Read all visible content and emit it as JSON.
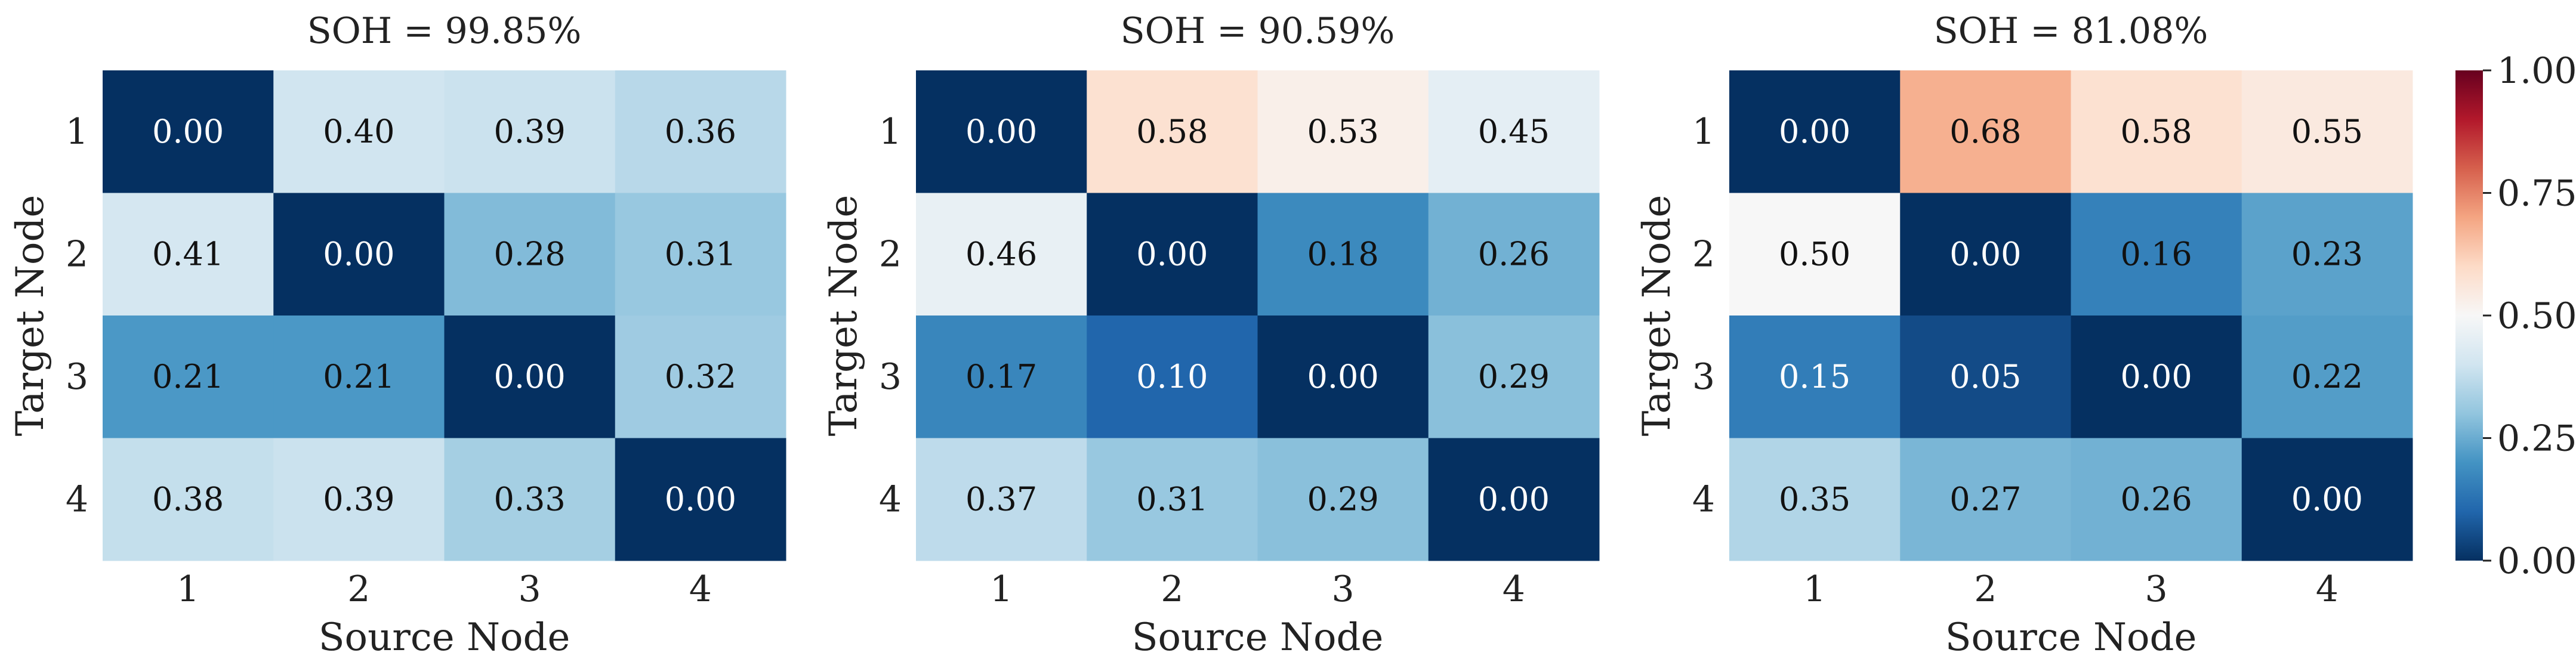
{
  "chart_data": [
    {
      "type": "heatmap",
      "title": "SOH = 99.85%",
      "xlabel": "Source Node",
      "ylabel": "Target Node",
      "x_ticks": [
        "1",
        "2",
        "3",
        "4"
      ],
      "y_ticks": [
        "1",
        "2",
        "3",
        "4"
      ],
      "values": [
        [
          0.0,
          0.4,
          0.39,
          0.36
        ],
        [
          0.41,
          0.0,
          0.28,
          0.31
        ],
        [
          0.21,
          0.21,
          0.0,
          0.32
        ],
        [
          0.38,
          0.39,
          0.33,
          0.0
        ]
      ]
    },
    {
      "type": "heatmap",
      "title": "SOH = 90.59%",
      "xlabel": "Source Node",
      "ylabel": "Target Node",
      "x_ticks": [
        "1",
        "2",
        "3",
        "4"
      ],
      "y_ticks": [
        "1",
        "2",
        "3",
        "4"
      ],
      "values": [
        [
          0.0,
          0.58,
          0.53,
          0.45
        ],
        [
          0.46,
          0.0,
          0.18,
          0.26
        ],
        [
          0.17,
          0.1,
          0.0,
          0.29
        ],
        [
          0.37,
          0.31,
          0.29,
          0.0
        ]
      ]
    },
    {
      "type": "heatmap",
      "title": "SOH = 81.08%",
      "xlabel": "Source Node",
      "ylabel": "Target Node",
      "x_ticks": [
        "1",
        "2",
        "3",
        "4"
      ],
      "y_ticks": [
        "1",
        "2",
        "3",
        "4"
      ],
      "values": [
        [
          0.0,
          0.68,
          0.58,
          0.55
        ],
        [
          0.5,
          0.0,
          0.16,
          0.23
        ],
        [
          0.15,
          0.05,
          0.0,
          0.22
        ],
        [
          0.35,
          0.27,
          0.26,
          0.0
        ]
      ]
    }
  ],
  "colorbar": {
    "colormap": "RdBu_r",
    "range": [
      0,
      1
    ],
    "ticks": [
      0.0,
      0.25,
      0.5,
      0.75,
      1.0
    ],
    "tick_labels": [
      "0.00",
      "0.25",
      "0.50",
      "0.75",
      "1.00"
    ]
  }
}
